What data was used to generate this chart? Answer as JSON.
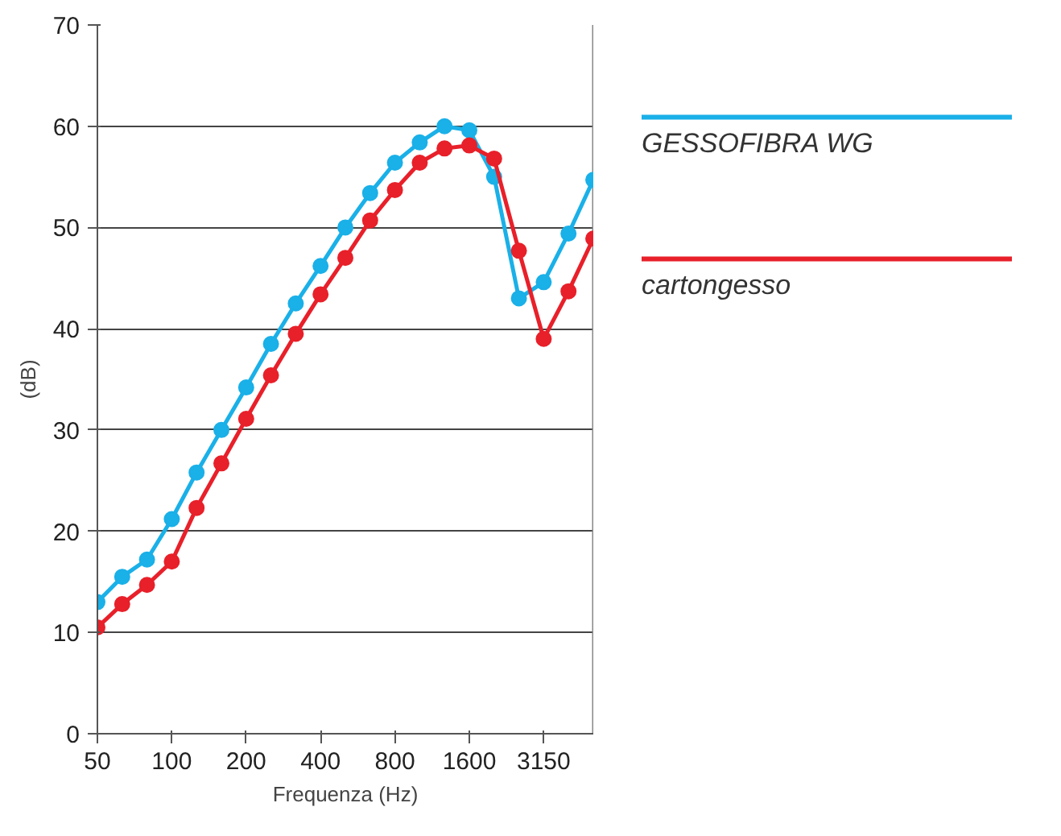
{
  "chart_data": {
    "type": "line",
    "xlabel": "Frequenza (Hz)",
    "ylabel": "(dB)",
    "categories": [
      "50",
      null,
      null,
      "100",
      null,
      null,
      "200",
      null,
      null,
      "400",
      null,
      null,
      "800",
      null,
      null,
      "1600",
      null,
      null,
      "3150",
      null,
      null
    ],
    "series": [
      {
        "name": "GESSOFIBRA WG",
        "color": "#1ab0e8",
        "values": [
          13,
          15.5,
          17.2,
          21.2,
          25.8,
          30,
          34.2,
          38.5,
          42.5,
          46.2,
          50,
          53.4,
          56.4,
          58.4,
          60,
          59.6,
          55,
          43,
          44.6,
          49.4,
          54.7
        ]
      },
      {
        "name": "cartongesso",
        "color": "#e8202a",
        "values": [
          10.5,
          12.8,
          14.7,
          17,
          22.3,
          26.7,
          31.1,
          35.4,
          39.5,
          43.4,
          47,
          50.7,
          53.7,
          56.4,
          57.8,
          58.1,
          56.8,
          47.7,
          39,
          43.7,
          48.9
        ]
      }
    ],
    "ylim": [
      0,
      70
    ],
    "yticks": [
      0,
      10,
      20,
      30,
      40,
      50,
      60,
      70
    ],
    "grid": "y",
    "legend": "right",
    "marker": "circle",
    "line_style": "solid"
  }
}
